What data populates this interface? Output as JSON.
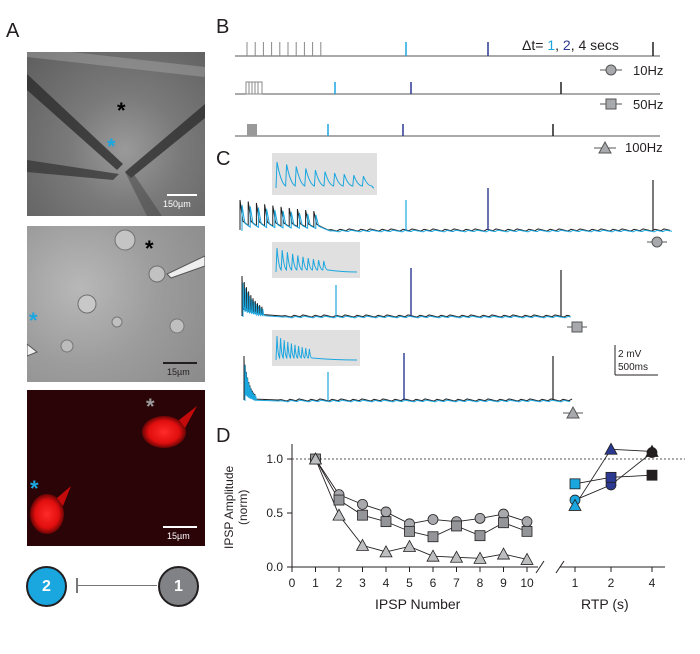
{
  "panels": {
    "a": "A",
    "b": "B",
    "c": "C",
    "d": "D"
  },
  "panel_a": {
    "img1_scale": "150µm",
    "img2_scale": "15µm",
    "img3_scale": "15µm",
    "asterisk": "*",
    "cell_2": "2",
    "cell_1": "1"
  },
  "panel_b": {
    "dt_prefix": "Δt= ",
    "dt_1": "1",
    "dt_sep1": ", ",
    "dt_2": "2",
    "dt_suffix": ", 4 secs",
    "freq_10": "10Hz",
    "freq_50": "50Hz",
    "freq_100": "100Hz"
  },
  "panel_c": {
    "scale_mv": "2 mV",
    "scale_ms": "500ms"
  },
  "colors": {
    "light_blue": "#1aa6df",
    "dark_blue": "#2b3990",
    "black": "#231f20",
    "gray": "#8c8c8c",
    "inset_bg": "#e0e0e0"
  },
  "chart_data": {
    "type": "scatter",
    "ylabel": "IPSP Amplitude\n(norm)",
    "xlabel_left": "IPSP Number",
    "xlabel_right": "RTP (s)",
    "ylim": [
      0.0,
      1.15
    ],
    "yticks": [
      "0.0",
      "0.5",
      "1.0"
    ],
    "xticks_left": [
      "0",
      "1",
      "2",
      "3",
      "4",
      "5",
      "6",
      "7",
      "8",
      "9",
      "10"
    ],
    "xticks_right": [
      "1",
      "2",
      "4"
    ],
    "reference_line": 1.0,
    "series": [
      {
        "name": "10Hz",
        "marker": "circle",
        "x": [
          1,
          2,
          3,
          4,
          5,
          6,
          7,
          8,
          9,
          10
        ],
        "y": [
          1.0,
          0.67,
          0.58,
          0.51,
          0.4,
          0.44,
          0.42,
          0.45,
          0.49,
          0.42
        ]
      },
      {
        "name": "50Hz",
        "marker": "square",
        "x": [
          1,
          2,
          3,
          4,
          5,
          6,
          7,
          8,
          9,
          10
        ],
        "y": [
          1.0,
          0.62,
          0.48,
          0.42,
          0.33,
          0.28,
          0.38,
          0.29,
          0.41,
          0.33
        ]
      },
      {
        "name": "100Hz",
        "marker": "triangle",
        "x": [
          1,
          2,
          3,
          4,
          5,
          6,
          7,
          8,
          9,
          10
        ],
        "y": [
          1.0,
          0.48,
          0.2,
          0.14,
          0.19,
          0.1,
          0.09,
          0.08,
          0.12,
          0.07
        ]
      }
    ],
    "recovery": [
      {
        "name": "10Hz",
        "marker": "circle",
        "x": [
          1,
          2,
          4
        ],
        "y": [
          0.62,
          0.76,
          1.06
        ]
      },
      {
        "name": "50Hz",
        "marker": "square",
        "x": [
          1,
          2,
          4
        ],
        "y": [
          0.77,
          0.83,
          0.85
        ]
      },
      {
        "name": "100Hz",
        "marker": "triangle",
        "x": [
          1,
          2,
          4
        ],
        "y": [
          0.57,
          1.09,
          1.07
        ]
      }
    ]
  }
}
